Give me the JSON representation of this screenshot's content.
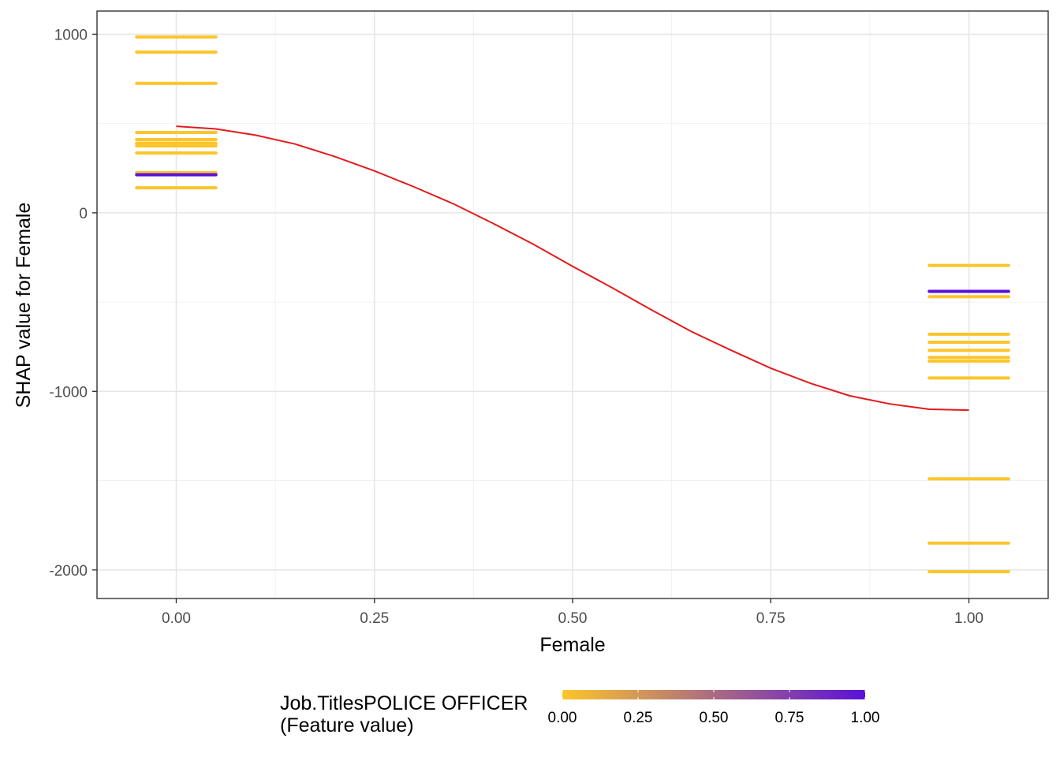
{
  "chart_data": {
    "type": "scatter",
    "xlabel": "Female",
    "ylabel": "SHAP value for Female",
    "xlim": [
      -0.1,
      1.1
    ],
    "ylim": [
      -2160,
      1130
    ],
    "x_ticks": [
      0,
      0.25,
      0.5,
      0.75,
      1
    ],
    "x_tick_labels": [
      "0.00",
      "0.25",
      "0.50",
      "0.75",
      "1.00"
    ],
    "y_ticks": [
      1000,
      0,
      -1000,
      -2000
    ],
    "y_tick_labels": [
      "1000",
      "0",
      "-1000",
      "-2000"
    ],
    "grid": true,
    "jitter_width": 0.05,
    "point_groups": [
      {
        "x": 0,
        "y": 985,
        "color_value": 0
      },
      {
        "x": 0,
        "y": 900,
        "color_value": 0
      },
      {
        "x": 0,
        "y": 725,
        "color_value": 0
      },
      {
        "x": 0,
        "y": 450,
        "color_value": 0
      },
      {
        "x": 0,
        "y": 410,
        "color_value": 0
      },
      {
        "x": 0,
        "y": 390,
        "color_value": 0
      },
      {
        "x": 0,
        "y": 375,
        "color_value": 0
      },
      {
        "x": 0,
        "y": 335,
        "color_value": 0
      },
      {
        "x": 0,
        "y": 225,
        "color_value": 0
      },
      {
        "x": 0,
        "y": 213,
        "color_value": 1
      },
      {
        "x": 0,
        "y": 140,
        "color_value": 0
      },
      {
        "x": 1,
        "y": -295,
        "color_value": 0
      },
      {
        "x": 1,
        "y": -440,
        "color_value": 1
      },
      {
        "x": 1,
        "y": -470,
        "color_value": 0
      },
      {
        "x": 1,
        "y": -680,
        "color_value": 0
      },
      {
        "x": 1,
        "y": -725,
        "color_value": 0
      },
      {
        "x": 1,
        "y": -770,
        "color_value": 0
      },
      {
        "x": 1,
        "y": -810,
        "color_value": 0
      },
      {
        "x": 1,
        "y": -830,
        "color_value": 0
      },
      {
        "x": 1,
        "y": -925,
        "color_value": 0
      },
      {
        "x": 1,
        "y": -1490,
        "color_value": 0
      },
      {
        "x": 1,
        "y": -1850,
        "color_value": 0
      },
      {
        "x": 1,
        "y": -2010,
        "color_value": 0
      }
    ],
    "smooth_line": {
      "color": "#e31a1c",
      "x": [
        0,
        0.05,
        0.1,
        0.15,
        0.2,
        0.25,
        0.3,
        0.35,
        0.4,
        0.45,
        0.5,
        0.55,
        0.6,
        0.65,
        0.7,
        0.75,
        0.8,
        0.85,
        0.9,
        0.95,
        1.0
      ],
      "y": [
        485,
        470,
        435,
        385,
        315,
        235,
        145,
        50,
        -60,
        -175,
        -300,
        -420,
        -545,
        -665,
        -770,
        -870,
        -955,
        -1025,
        -1070,
        -1100,
        -1105
      ]
    },
    "legend": {
      "title_line1": "Job.TitlesPOLICE OFFICER",
      "title_line2": "(Feature value)",
      "position": "bottom",
      "color_low": "#fcc52b",
      "color_high": "#5a10d8",
      "range": [
        0,
        1
      ],
      "ticks": [
        0,
        0.25,
        0.5,
        0.75,
        1
      ],
      "tick_labels": [
        "0.00",
        "0.25",
        "0.50",
        "0.75",
        "1.00"
      ]
    }
  }
}
